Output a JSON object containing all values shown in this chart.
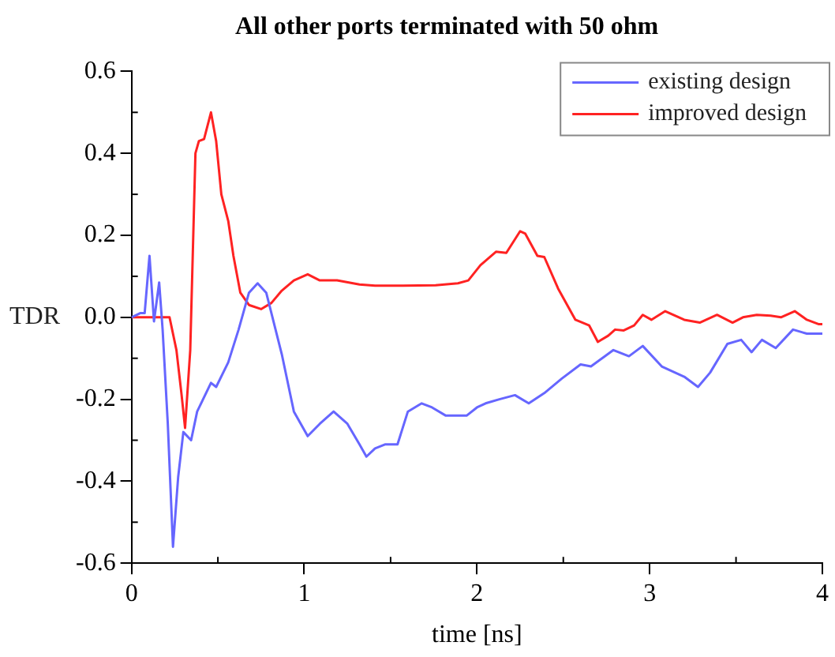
{
  "chart_data": {
    "type": "line",
    "title": "All other ports terminated with 50 ohm",
    "xlabel": "time [ns]",
    "ylabel": "TDR",
    "xlim": [
      0,
      4
    ],
    "xticks": [
      0,
      1,
      2,
      3,
      4
    ],
    "ylim": [
      -0.6,
      0.6
    ],
    "yticks": [
      -0.6,
      -0.4,
      -0.2,
      {
        "value": 0,
        "label": "0.0"
      },
      0.2,
      0.4,
      0.6
    ],
    "grid": false,
    "legend": "top right",
    "marker": "none",
    "line_style": "solid",
    "series": [
      {
        "name": "existing design",
        "color": "#6666ff",
        "x": [
          0,
          0.05,
          0.076,
          0.104,
          0.13,
          0.16,
          0.18,
          0.21,
          0.24,
          0.27,
          0.3,
          0.345,
          0.38,
          0.46,
          0.49,
          0.56,
          0.62,
          0.68,
          0.73,
          0.78,
          0.87,
          0.94,
          1.02,
          1.09,
          1.17,
          1.25,
          1.32,
          1.36,
          1.41,
          1.47,
          1.54,
          1.6,
          1.68,
          1.74,
          1.82,
          1.94,
          2.0,
          2.05,
          2.13,
          2.22,
          2.3,
          2.39,
          2.49,
          2.6,
          2.66,
          2.79,
          2.88,
          2.96,
          3.07,
          3.2,
          3.28,
          3.35,
          3.45,
          3.53,
          3.59,
          3.65,
          3.73,
          3.83,
          3.91,
          4.0
        ],
        "values": [
          0,
          0.01,
          0.01,
          0.15,
          -0.01,
          0.085,
          -0.03,
          -0.26,
          -0.56,
          -0.39,
          -0.28,
          -0.3,
          -0.23,
          -0.16,
          -0.17,
          -0.11,
          -0.03,
          0.06,
          0.083,
          0.06,
          -0.09,
          -0.23,
          -0.29,
          -0.26,
          -0.23,
          -0.26,
          -0.31,
          -0.34,
          -0.32,
          -0.31,
          -0.31,
          -0.23,
          -0.21,
          -0.22,
          -0.24,
          -0.24,
          -0.22,
          -0.21,
          -0.2,
          -0.19,
          -0.21,
          -0.185,
          -0.15,
          -0.115,
          -0.12,
          -0.08,
          -0.095,
          -0.07,
          -0.12,
          -0.145,
          -0.17,
          -0.135,
          -0.065,
          -0.055,
          -0.085,
          -0.055,
          -0.075,
          -0.03,
          -0.04,
          -0.04
        ]
      },
      {
        "name": "improved design",
        "color": "#ff2222",
        "x": [
          0,
          0.22,
          0.26,
          0.29,
          0.31,
          0.34,
          0.37,
          0.39,
          0.42,
          0.46,
          0.49,
          0.52,
          0.56,
          0.59,
          0.63,
          0.68,
          0.75,
          0.81,
          0.87,
          0.94,
          1.02,
          1.09,
          1.19,
          1.32,
          1.41,
          1.57,
          1.76,
          1.89,
          1.95,
          2.02,
          2.11,
          2.17,
          2.25,
          2.28,
          2.35,
          2.39,
          2.47,
          2.57,
          2.65,
          2.7,
          2.76,
          2.8,
          2.85,
          2.91,
          2.96,
          3.01,
          3.09,
          3.2,
          3.29,
          3.39,
          3.48,
          3.54,
          3.62,
          3.7,
          3.76,
          3.84,
          3.91,
          3.98,
          4.0
        ],
        "values": [
          0,
          0,
          -0.08,
          -0.19,
          -0.27,
          -0.08,
          0.4,
          0.43,
          0.435,
          0.5,
          0.43,
          0.3,
          0.235,
          0.15,
          0.06,
          0.03,
          0.02,
          0.035,
          0.065,
          0.09,
          0.105,
          0.09,
          0.09,
          0.08,
          0.077,
          0.077,
          0.078,
          0.083,
          0.09,
          0.127,
          0.16,
          0.157,
          0.21,
          0.204,
          0.15,
          0.147,
          0.07,
          -0.006,
          -0.02,
          -0.06,
          -0.045,
          -0.03,
          -0.032,
          -0.02,
          0.006,
          -0.006,
          0.015,
          -0.006,
          -0.013,
          0.006,
          -0.013,
          0,
          0.006,
          0.004,
          0,
          0.015,
          -0.006,
          -0.017,
          -0.017
        ]
      }
    ]
  }
}
